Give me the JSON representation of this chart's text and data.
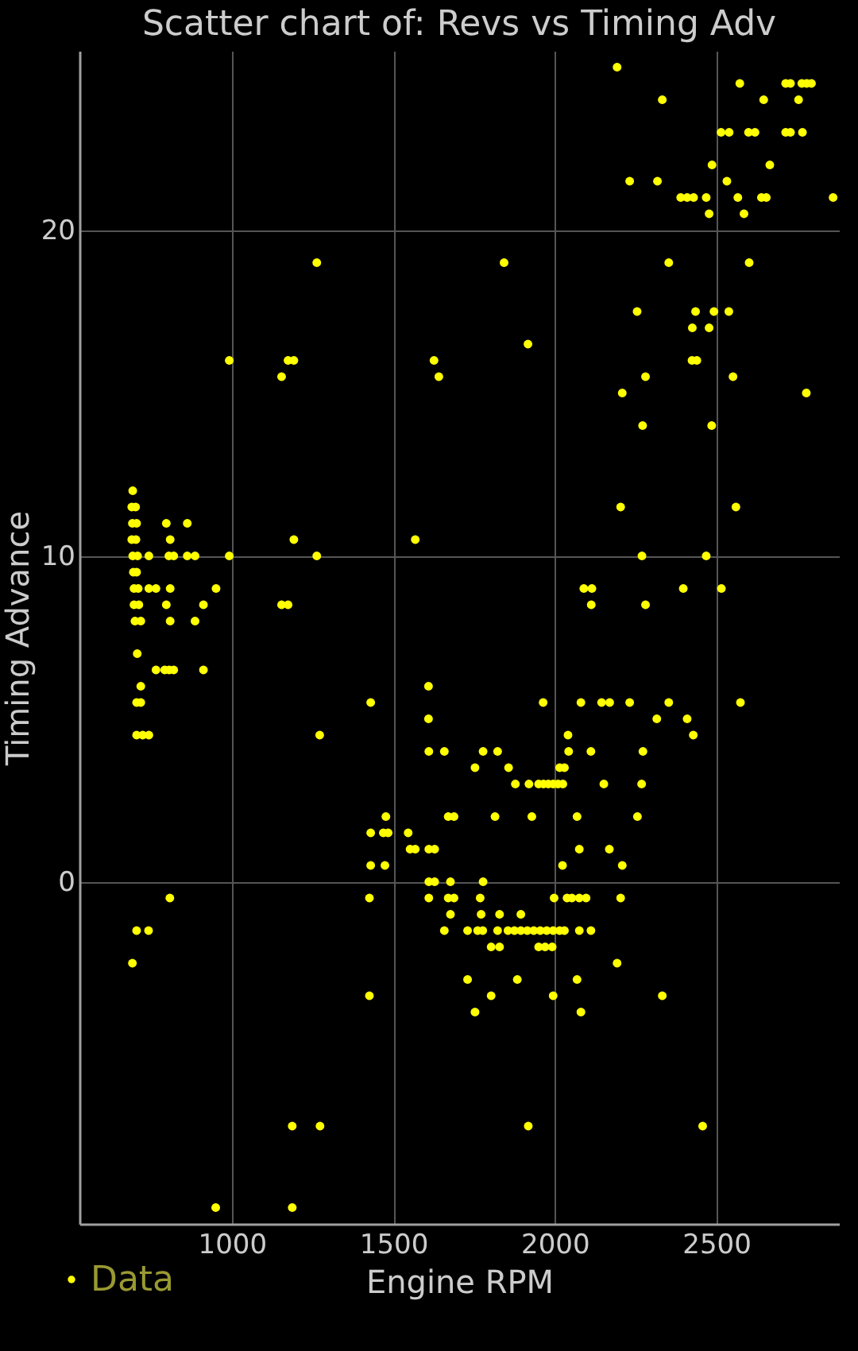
{
  "chart_data": {
    "type": "scatter",
    "title": "Scatter chart of: Revs vs Timing Adv",
    "xlabel": "Engine RPM",
    "ylabel": "Timing Advance",
    "series": [
      {
        "name": "Data",
        "color": "#ffff00",
        "x": [
          2193,
          2573,
          2715,
          2730,
          2765,
          2780,
          2795,
          2333,
          2647,
          2755,
          2515,
          2540,
          2600,
          2620,
          2715,
          2730,
          2767,
          2487,
          2666,
          2232,
          2318,
          2533,
          2390,
          2410,
          2430,
          2469,
          2567,
          2640,
          2655,
          2862,
          2478,
          2586,
          1263,
          1843,
          2353,
          2602,
          2255,
          2436,
          2493,
          2539,
          2426,
          2478,
          1917,
          992,
          1174,
          1192,
          1626,
          2425,
          2440,
          1154,
          1641,
          2281,
          2552,
          2209,
          2779,
          2272,
          2486,
          693,
          690,
          702,
          2204,
          2561,
          692,
          705,
          797,
          862,
          690,
          703,
          809,
          1192,
          1568,
          693,
          708,
          743,
          805,
          820,
          862,
          886,
          992,
          1263,
          2270,
          2469,
          695,
          705,
          697,
          710,
          743,
          765,
          809,
          951,
          2090,
          2115,
          2398,
          2516,
          697,
          712,
          797,
          912,
          1154,
          1174,
          2113,
          2281,
          700,
          718,
          809,
          886,
          707,
          765,
          792,
          806,
          820,
          912,
          718,
          1609,
          705,
          718,
          1430,
          1964,
          2081,
          2145,
          2170,
          2232,
          2353,
          2575,
          1609,
          2316,
          2410,
          705,
          724,
          743,
          1272,
          2041,
          2429,
          1610,
          1658,
          1778,
          1823,
          2043,
          2112,
          2273,
          1753,
          1857,
          2015,
          2030,
          1878,
          1920,
          1950,
          1965,
          1980,
          1995,
          2010,
          2025,
          2152,
          2269,
          1477,
          1670,
          1688,
          1815,
          1929,
          2069,
          2256,
          1430,
          1469,
          1484,
          1546,
          1552,
          1568,
          1610,
          1628,
          2076,
          2169,
          1430,
          1474,
          2024,
          2209,
          1610,
          1628,
          1677,
          1778,
          808,
          1426,
          1610,
          1670,
          1688,
          1769,
          1998,
          2038,
          2053,
          2076,
          2097,
          2204,
          1677,
          1772,
          1829,
          1895,
          705,
          742,
          1658,
          1730,
          1761,
          1777,
          1823,
          1855,
          1875,
          1895,
          1915,
          1935,
          1955,
          1975,
          1995,
          2015,
          2030,
          2076,
          2112,
          1803,
          1829,
          1950,
          1970,
          1992,
          692,
          2193,
          1730,
          1884,
          2069,
          1426,
          1803,
          1995,
          2333,
          1753,
          2081,
          1187,
          1273,
          1918,
          2458,
          950,
          1187
        ],
        "values": [
          25,
          24.5,
          24.5,
          24.5,
          24.5,
          24.5,
          24.5,
          24,
          24,
          24,
          23,
          23,
          23,
          23,
          23,
          23,
          23,
          22,
          22,
          21.5,
          21.5,
          21.5,
          21,
          21,
          21,
          21,
          21,
          21,
          21,
          21,
          20.5,
          20.5,
          19,
          19,
          19,
          19,
          17.5,
          17.5,
          17.5,
          17.5,
          17,
          17,
          16.5,
          16,
          16,
          16,
          16,
          16,
          16,
          15.5,
          15.5,
          15.5,
          15.5,
          15,
          15,
          14,
          14,
          12,
          11.5,
          11.5,
          11.5,
          11.5,
          11,
          11,
          11,
          11,
          10.5,
          10.5,
          10.5,
          10.5,
          10.5,
          10,
          10,
          10,
          10,
          10,
          10,
          10,
          10,
          10,
          10,
          10,
          9.5,
          9.5,
          9,
          9,
          9,
          9,
          9,
          9,
          9,
          9,
          9,
          9,
          8.5,
          8.5,
          8.5,
          8.5,
          8.5,
          8.5,
          8.5,
          8.5,
          8,
          8,
          8,
          8,
          7,
          6.5,
          6.5,
          6.5,
          6.5,
          6.5,
          6,
          6,
          5.5,
          5.5,
          5.5,
          5.5,
          5.5,
          5.5,
          5.5,
          5.5,
          5.5,
          5.5,
          5,
          5,
          5,
          4.5,
          4.5,
          4.5,
          4.5,
          4.5,
          4.5,
          4,
          4,
          4,
          4,
          4,
          4,
          4,
          3.5,
          3.5,
          3.5,
          3.5,
          3,
          3,
          3,
          3,
          3,
          3,
          3,
          3,
          3,
          3,
          2,
          2,
          2,
          2,
          2,
          2,
          2,
          1.5,
          1.5,
          1.5,
          1.5,
          1,
          1,
          1,
          1,
          1,
          1,
          0.5,
          0.5,
          0.5,
          0.5,
          0,
          0,
          0,
          0,
          -0.5,
          -0.5,
          -0.5,
          -0.5,
          -0.5,
          -0.5,
          -0.5,
          -0.5,
          -0.5,
          -0.5,
          -0.5,
          -0.5,
          -1,
          -1,
          -1,
          -1,
          -1.5,
          -1.5,
          -1.5,
          -1.5,
          -1.5,
          -1.5,
          -1.5,
          -1.5,
          -1.5,
          -1.5,
          -1.5,
          -1.5,
          -1.5,
          -1.5,
          -1.5,
          -1.5,
          -1.5,
          -1.5,
          -1.5,
          -2,
          -2,
          -2,
          -2,
          -2,
          -2.5,
          -2.5,
          -3,
          -3,
          -3,
          -3.5,
          -3.5,
          -3.5,
          -3.5,
          -4,
          -4,
          -7.5,
          -7.5,
          -7.5,
          -7.5,
          -10,
          -10
        ]
      }
    ],
    "xlim": [
      528,
      2880
    ],
    "ylim": [
      -10.5,
      25.5
    ],
    "xticks": [
      1000,
      1500,
      2000,
      2500
    ],
    "yticks": [
      0,
      10,
      20
    ],
    "grid": true,
    "legend": "bottom left",
    "marker": "circle"
  }
}
